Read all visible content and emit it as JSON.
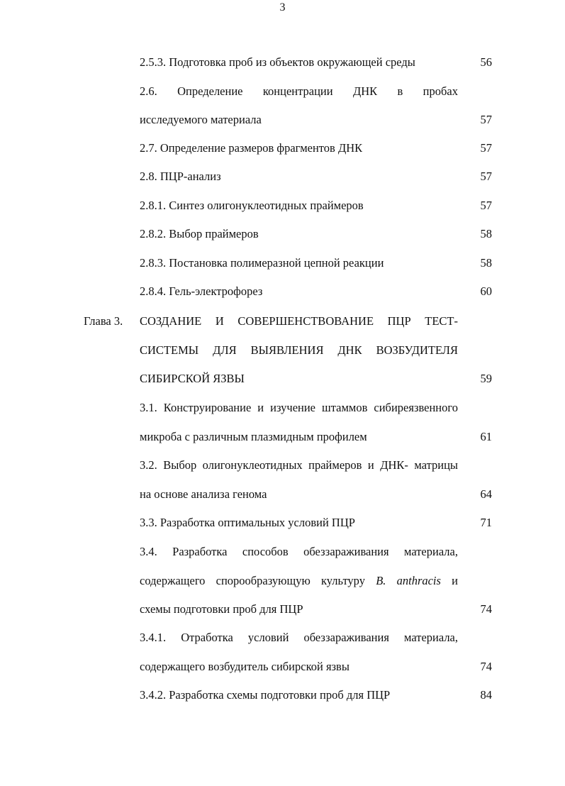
{
  "page_number": "3",
  "chapter_label": "Глава 3.",
  "lines": [
    {
      "text": "2.5.3. Подготовка проб из объектов окружающей среды",
      "page": "56"
    },
    {
      "text": "2.6. Определение концентрации ДНК в пробах"
    },
    {
      "text": "исследуемого материала",
      "page": "57"
    },
    {
      "text": "2.7. Определение размеров фрагментов ДНК",
      "page": "57"
    },
    {
      "text": "2.8. ПЦР-анализ",
      "page": "57"
    },
    {
      "text": "2.8.1. Синтез олигонуклеотидных праймеров",
      "page": "57"
    },
    {
      "text": "2.8.2. Выбор праймеров",
      "page": "58"
    },
    {
      "text": "2.8.3. Постановка полимеразной цепной реакции",
      "page": "58"
    },
    {
      "text": "2.8.4. Гель-электрофорез",
      "page": "60"
    },
    {
      "text": "СОЗДАНИЕ И СОВЕРШЕНСТВОВАНИЕ ПЦР ТЕСТ-"
    },
    {
      "text": "СИСТЕМЫ ДЛЯ ВЫЯВЛЕНИЯ ДНК ВОЗБУДИТЕЛЯ"
    },
    {
      "text": "СИБИРСКОЙ ЯЗВЫ",
      "page": "59"
    },
    {
      "text": "3.1. Конструирование и изучение штаммов сибиреязвенного"
    },
    {
      "text": "микроба с различным плазмидным профилем",
      "page": "61"
    },
    {
      "text": "3.2. Выбор олигонуклеотидных праймеров и ДНК- матрицы"
    },
    {
      "text": "на основе анализа генома",
      "page": "64"
    },
    {
      "text": "3.3. Разработка оптимальных условий ПЦР",
      "page": "71"
    },
    {
      "text": "3.4. Разработка способов обеззараживания материала,"
    },
    {
      "text_before": "содержащего спорообразующую культуру",
      "text_italic": "B. anthracis",
      "text_after": "и"
    },
    {
      "text": "схемы подготовки проб для ПЦР",
      "page": "74"
    },
    {
      "text": "3.4.1. Отработка условий обеззараживания материала,"
    },
    {
      "text": "содержащего возбудитель сибирской язвы",
      "page": "74"
    },
    {
      "text": "3.4.2. Разработка схемы подготовки проб для ПЦР",
      "page": "84"
    }
  ]
}
